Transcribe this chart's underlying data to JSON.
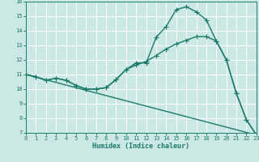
{
  "title": "",
  "xlabel": "Humidex (Indice chaleur)",
  "xlim": [
    0,
    23
  ],
  "ylim": [
    7,
    16
  ],
  "yticks": [
    7,
    8,
    9,
    10,
    11,
    12,
    13,
    14,
    15,
    16
  ],
  "xticks": [
    0,
    1,
    2,
    3,
    4,
    5,
    6,
    7,
    8,
    9,
    10,
    11,
    12,
    13,
    14,
    15,
    16,
    17,
    18,
    19,
    20,
    21,
    22,
    23
  ],
  "bg_color": "#cce8e4",
  "line_color": "#1a7a6e",
  "grid_color": "#ffffff",
  "line1": {
    "x": [
      0,
      1,
      2,
      3,
      4,
      5,
      6,
      7,
      8,
      9,
      10,
      11,
      12,
      13,
      14,
      15,
      16,
      17,
      18,
      19,
      20,
      21,
      22,
      23
    ],
    "y": [
      11.0,
      10.85,
      10.6,
      10.75,
      10.6,
      10.25,
      10.0,
      10.0,
      10.1,
      10.65,
      11.35,
      11.8,
      11.8,
      13.55,
      14.3,
      15.45,
      15.65,
      15.3,
      14.75,
      13.3,
      12.0,
      9.7,
      7.9,
      6.85
    ]
  },
  "line2": {
    "x": [
      0,
      1,
      2,
      3,
      4,
      5,
      6,
      7,
      8,
      9,
      10,
      11,
      12,
      13,
      14,
      15,
      16,
      17,
      18,
      19,
      20,
      21,
      22,
      23
    ],
    "y": [
      11.0,
      10.85,
      10.6,
      10.75,
      10.6,
      10.25,
      10.0,
      10.0,
      10.1,
      10.65,
      11.35,
      11.65,
      11.9,
      12.3,
      12.75,
      13.1,
      13.35,
      13.6,
      13.6,
      13.3,
      12.0,
      9.7,
      7.9,
      6.85
    ]
  },
  "line3": {
    "x": [
      0,
      23
    ],
    "y": [
      11.0,
      6.85
    ]
  },
  "font_color": "#1a7a6e",
  "marker": "+",
  "markersize": 4,
  "linewidth": 1.0
}
